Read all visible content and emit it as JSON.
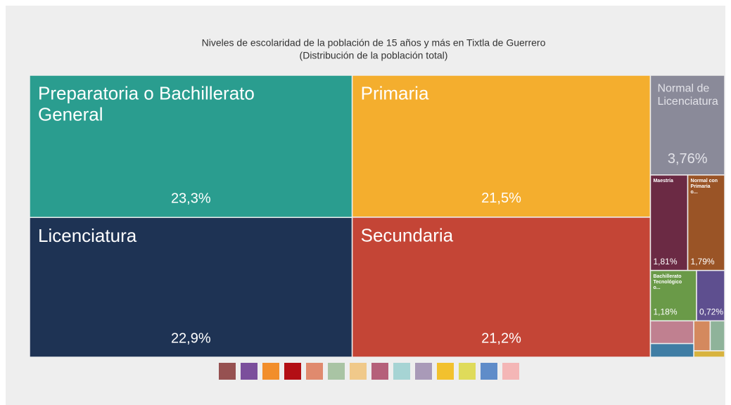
{
  "chart_data": {
    "type": "treemap",
    "title": "Niveles de escolaridad de la población de 15 años y más en Tixtla de Guerrero",
    "subtitle": "(Distribución de la población total)",
    "categories": [
      "Preparatoria o Bachillerato General",
      "Primaria",
      "Licenciatura",
      "Secundaria",
      "Normal de Licenciatura",
      "Maestría",
      "Normal con Primaria o...",
      "Bachillerato Tecnológico o...",
      null,
      null,
      null,
      null,
      null,
      null
    ],
    "values": [
      23.3,
      21.5,
      22.9,
      21.2,
      3.76,
      1.81,
      1.79,
      1.18,
      0.72,
      0.5,
      0.25,
      0.22,
      0.3,
      0.1
    ],
    "value_labels": [
      "23,3%",
      "21,5%",
      "22,9%",
      "21,2%",
      "3,76%",
      "1,81%",
      "1,79%",
      "1,18%",
      "0,72%",
      null,
      null,
      null,
      null,
      null
    ],
    "colors": [
      "#2a9d8f",
      "#f4ae2e",
      "#1e3354",
      "#c44536",
      "#8a8a99",
      "#6b2a44",
      "#9a5426",
      "#6a9a48",
      "#5e4f8f",
      "#c08090",
      "#d4895e",
      "#8fb39a",
      "#3f7da4",
      "#d8b33e"
    ],
    "legend_colors": [
      "#965151",
      "#7b4f9c",
      "#f28e2b",
      "#b30f15",
      "#e08a6e",
      "#a9c4a4",
      "#f0c98a",
      "#b5607a",
      "#a6d4d4",
      "#a99ab8",
      "#f2c12e",
      "#dfdb5a",
      "#5f8cc9",
      "#f4b6b6"
    ]
  }
}
